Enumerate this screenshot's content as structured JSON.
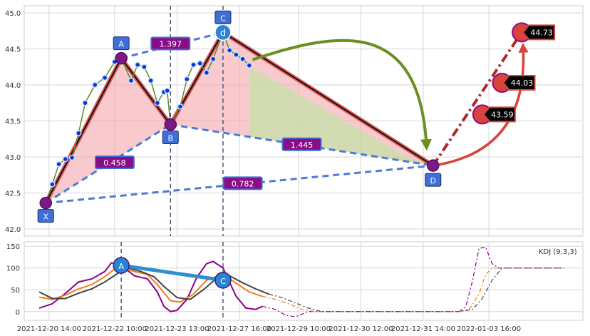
{
  "chart_data": [
    {
      "type": "line",
      "panel": "price",
      "ylim": [
        41.9,
        45.1
      ],
      "yticks": [
        "42.0",
        "42.5",
        "43.0",
        "43.5",
        "44.0",
        "44.5",
        "45.0"
      ],
      "ytick_values": [
        42.0,
        42.5,
        43.0,
        43.5,
        44.0,
        44.5,
        45.0
      ],
      "xlim": [
        0,
        160
      ],
      "vlines": [
        40,
        56
      ],
      "pattern_points": [
        {
          "name": "X",
          "x": 2,
          "y": 42.36
        },
        {
          "name": "A",
          "x": 25,
          "y": 44.37
        },
        {
          "name": "B",
          "x": 40,
          "y": 43.45
        },
        {
          "name": "C",
          "x": 56,
          "y": 44.73
        },
        {
          "name": "D",
          "x": 120,
          "y": 42.88
        }
      ],
      "ratio_labels": [
        {
          "text": "1.397",
          "x": 40,
          "y": 44.57
        },
        {
          "text": "0.458",
          "x": 23,
          "y": 42.92
        },
        {
          "text": "1.445",
          "x": 80,
          "y": 43.17
        },
        {
          "text": "0.782",
          "x": 62,
          "y": 42.63
        }
      ],
      "price_series": [
        {
          "x": 2,
          "y": 42.36
        },
        {
          "x": 4,
          "y": 42.62
        },
        {
          "x": 6,
          "y": 42.9
        },
        {
          "x": 8,
          "y": 42.97
        },
        {
          "x": 10,
          "y": 42.99
        },
        {
          "x": 12,
          "y": 43.33
        },
        {
          "x": 14,
          "y": 43.75
        },
        {
          "x": 17,
          "y": 44.0
        },
        {
          "x": 20,
          "y": 44.1
        },
        {
          "x": 23,
          "y": 44.32
        },
        {
          "x": 25,
          "y": 44.37
        },
        {
          "x": 28,
          "y": 44.06
        },
        {
          "x": 30,
          "y": 44.28
        },
        {
          "x": 32,
          "y": 44.25
        },
        {
          "x": 34,
          "y": 44.06
        },
        {
          "x": 36,
          "y": 43.75
        },
        {
          "x": 38,
          "y": 43.9
        },
        {
          "x": 39,
          "y": 43.92
        },
        {
          "x": 40,
          "y": 43.45
        },
        {
          "x": 43,
          "y": 43.7
        },
        {
          "x": 45,
          "y": 44.08
        },
        {
          "x": 47,
          "y": 44.28
        },
        {
          "x": 49,
          "y": 44.3
        },
        {
          "x": 51,
          "y": 44.17
        },
        {
          "x": 53,
          "y": 44.36
        },
        {
          "x": 56,
          "y": 44.73
        },
        {
          "x": 58,
          "y": 44.48
        },
        {
          "x": 60,
          "y": 44.42
        },
        {
          "x": 62,
          "y": 44.36
        },
        {
          "x": 64,
          "y": 44.27
        }
      ],
      "targets": [
        {
          "text": "43.59",
          "x": 135,
          "y": 43.59
        },
        {
          "text": "44.03",
          "x": 141,
          "y": 44.03
        },
        {
          "text": "44.73",
          "x": 147,
          "y": 44.73
        }
      ]
    },
    {
      "type": "line",
      "panel": "indicator",
      "legend": "KDJ (9,3,3)",
      "ylim": [
        -20,
        160
      ],
      "yticks": [
        "0",
        "50",
        "100",
        "150"
      ],
      "ytick_values": [
        0,
        50,
        100,
        150
      ],
      "xlim": [
        0,
        160
      ],
      "vlines": [
        25,
        56
      ],
      "xtick_labels": [
        "2021-12-20 14:00",
        "2021-12-22 10:00",
        "2021-12-23 13:00",
        "2021-12-27 16:00",
        "2021-12-29 10:00",
        "2021-12-30 12:00",
        "2021-12-31 14:00",
        "2022-01-03 16:00"
      ],
      "xtick_values": [
        3,
        23,
        42,
        61,
        79,
        98,
        117,
        137
      ],
      "points": [
        {
          "name": "A",
          "x": 25,
          "y": 106
        },
        {
          "name": "C",
          "x": 56,
          "y": 72
        }
      ],
      "series": [
        {
          "color": "#8b008b",
          "values": [
            [
              0,
              8
            ],
            [
              4,
              18
            ],
            [
              8,
              42
            ],
            [
              12,
              68
            ],
            [
              16,
              75
            ],
            [
              20,
              92
            ],
            [
              22,
              112
            ],
            [
              25,
              106
            ],
            [
              29,
              82
            ],
            [
              33,
              75
            ],
            [
              36,
              45
            ],
            [
              38,
              12
            ],
            [
              40,
              0
            ],
            [
              42,
              3
            ],
            [
              45,
              28
            ],
            [
              48,
              78
            ],
            [
              51,
              110
            ],
            [
              53,
              115
            ],
            [
              56,
              100
            ],
            [
              60,
              35
            ],
            [
              63,
              8
            ],
            [
              66,
              5
            ],
            [
              68,
              12
            ]
          ]
        },
        {
          "color": "#f07f1a",
          "values": [
            [
              0,
              33
            ],
            [
              4,
              28
            ],
            [
              8,
              38
            ],
            [
              12,
              52
            ],
            [
              16,
              62
            ],
            [
              20,
              80
            ],
            [
              23,
              98
            ],
            [
              25,
              100
            ],
            [
              29,
              92
            ],
            [
              33,
              85
            ],
            [
              36,
              62
            ],
            [
              40,
              25
            ],
            [
              43,
              22
            ],
            [
              47,
              40
            ],
            [
              51,
              72
            ],
            [
              56,
              86
            ],
            [
              60,
              65
            ],
            [
              64,
              45
            ],
            [
              68,
              35
            ]
          ]
        },
        {
          "color": "#444444",
          "values": [
            [
              0,
              45
            ],
            [
              4,
              30
            ],
            [
              8,
              30
            ],
            [
              12,
              42
            ],
            [
              16,
              52
            ],
            [
              20,
              68
            ],
            [
              24,
              88
            ],
            [
              27,
              100
            ],
            [
              31,
              92
            ],
            [
              35,
              80
            ],
            [
              38,
              58
            ],
            [
              42,
              32
            ],
            [
              46,
              28
            ],
            [
              50,
              50
            ],
            [
              54,
              76
            ],
            [
              58,
              82
            ],
            [
              62,
              66
            ],
            [
              66,
              52
            ],
            [
              70,
              40
            ]
          ]
        }
      ],
      "dash_series": [
        {
          "color": "#8b008b",
          "values": [
            [
              68,
              12
            ],
            [
              72,
              5
            ],
            [
              75,
              -8
            ],
            [
              78,
              -12
            ],
            [
              82,
              0
            ],
            [
              85,
              0
            ],
            [
              128,
              0
            ],
            [
              130,
              12
            ],
            [
              132,
              70
            ],
            [
              134,
              145
            ],
            [
              136,
              148
            ],
            [
              138,
              110
            ],
            [
              140,
              100
            ],
            [
              160,
              100
            ]
          ]
        },
        {
          "color": "#f07f1a",
          "values": [
            [
              68,
              35
            ],
            [
              72,
              28
            ],
            [
              76,
              18
            ],
            [
              80,
              5
            ],
            [
              84,
              0
            ],
            [
              128,
              0
            ],
            [
              131,
              5
            ],
            [
              134,
              40
            ],
            [
              136,
              85
            ],
            [
              138,
              100
            ],
            [
              160,
              100
            ]
          ]
        },
        {
          "color": "#444444",
          "values": [
            [
              70,
              40
            ],
            [
              74,
              32
            ],
            [
              78,
              20
            ],
            [
              82,
              8
            ],
            [
              86,
              0
            ],
            [
              128,
              0
            ],
            [
              132,
              5
            ],
            [
              135,
              30
            ],
            [
              138,
              72
            ],
            [
              141,
              100
            ],
            [
              160,
              100
            ]
          ]
        }
      ]
    }
  ]
}
